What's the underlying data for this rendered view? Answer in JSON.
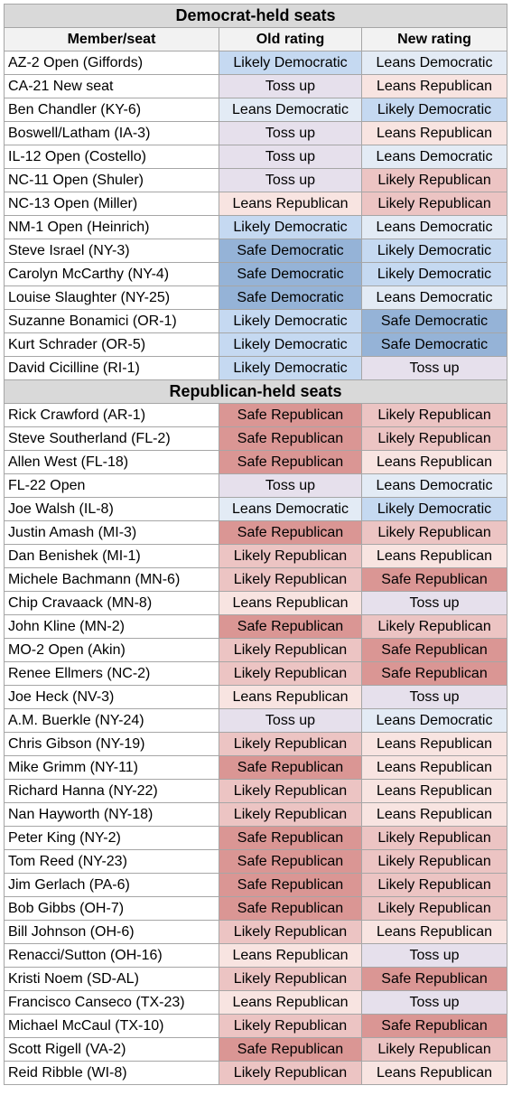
{
  "table": {
    "columns": [
      "Member/seat",
      "Old rating",
      "New rating"
    ],
    "rating_colors": {
      "Safe Democratic": "#95b3d7",
      "Likely Democratic": "#c5d9f1",
      "Leans Democratic": "#e3ebf5",
      "Toss up": "#e6e0ec",
      "Leans Republican": "#f8e4e1",
      "Likely Republican": "#ecc4c3",
      "Safe Republican": "#da9694"
    },
    "sections": [
      {
        "title": "Democrat-held seats",
        "rows": [
          [
            "AZ-2 Open (Giffords)",
            "Likely Democratic",
            "Leans Democratic"
          ],
          [
            "CA-21 New seat",
            "Toss up",
            "Leans Republican"
          ],
          [
            "Ben Chandler (KY-6)",
            "Leans Democratic",
            "Likely Democratic"
          ],
          [
            "Boswell/Latham (IA-3)",
            "Toss up",
            "Leans Republican"
          ],
          [
            "IL-12 Open (Costello)",
            "Toss up",
            "Leans Democratic"
          ],
          [
            "NC-11 Open (Shuler)",
            "Toss up",
            "Likely Republican"
          ],
          [
            "NC-13 Open (Miller)",
            "Leans Republican",
            "Likely Republican"
          ],
          [
            "NM-1 Open (Heinrich)",
            "Likely Democratic",
            "Leans Democratic"
          ],
          [
            "Steve Israel (NY-3)",
            "Safe Democratic",
            "Likely Democratic"
          ],
          [
            "Carolyn McCarthy (NY-4)",
            "Safe Democratic",
            "Likely Democratic"
          ],
          [
            "Louise Slaughter (NY-25)",
            "Safe Democratic",
            "Leans Democratic"
          ],
          [
            "Suzanne Bonamici (OR-1)",
            "Likely Democratic",
            "Safe Democratic"
          ],
          [
            "Kurt Schrader (OR-5)",
            "Likely Democratic",
            "Safe Democratic"
          ],
          [
            "David Cicilline (RI-1)",
            "Likely Democratic",
            "Toss up"
          ]
        ]
      },
      {
        "title": "Republican-held seats",
        "rows": [
          [
            "Rick Crawford (AR-1)",
            "Safe Republican",
            "Likely Republican"
          ],
          [
            "Steve Southerland (FL-2)",
            "Safe Republican",
            "Likely Republican"
          ],
          [
            "Allen West (FL-18)",
            "Safe Republican",
            "Leans Republican"
          ],
          [
            "FL-22 Open",
            "Toss up",
            "Leans Democratic"
          ],
          [
            "Joe Walsh (IL-8)",
            "Leans Democratic",
            "Likely Democratic"
          ],
          [
            "Justin Amash (MI-3)",
            "Safe Republican",
            "Likely Republican"
          ],
          [
            "Dan Benishek (MI-1)",
            "Likely Republican",
            "Leans Republican"
          ],
          [
            "Michele Bachmann (MN-6)",
            "Likely Republican",
            "Safe Republican"
          ],
          [
            "Chip Cravaack (MN-8)",
            "Leans Republican",
            "Toss up"
          ],
          [
            "John Kline (MN-2)",
            "Safe Republican",
            "Likely Republican"
          ],
          [
            "MO-2 Open (Akin)",
            "Likely Republican",
            "Safe Republican"
          ],
          [
            "Renee Ellmers (NC-2)",
            "Likely Republican",
            "Safe Republican"
          ],
          [
            "Joe Heck (NV-3)",
            "Leans Republican",
            "Toss up"
          ],
          [
            "A.M. Buerkle (NY-24)",
            "Toss up",
            "Leans Democratic"
          ],
          [
            "Chris Gibson (NY-19)",
            "Likely Republican",
            "Leans Republican"
          ],
          [
            "Mike Grimm (NY-11)",
            "Safe Republican",
            "Leans Republican"
          ],
          [
            "Richard Hanna (NY-22)",
            "Likely Republican",
            "Leans Republican"
          ],
          [
            "Nan Hayworth (NY-18)",
            "Likely Republican",
            "Leans Republican"
          ],
          [
            "Peter King (NY-2)",
            "Safe Republican",
            "Likely Republican"
          ],
          [
            "Tom Reed (NY-23)",
            "Safe Republican",
            "Likely Republican"
          ],
          [
            "Jim Gerlach (PA-6)",
            "Safe Republican",
            "Likely Republican"
          ],
          [
            "Bob Gibbs (OH-7)",
            "Safe Republican",
            "Likely Republican"
          ],
          [
            "Bill Johnson (OH-6)",
            "Likely Republican",
            "Leans Republican"
          ],
          [
            "Renacci/Sutton (OH-16)",
            "Leans Republican",
            "Toss up"
          ],
          [
            "Kristi Noem (SD-AL)",
            "Likely Republican",
            "Safe Republican"
          ],
          [
            "Francisco Canseco (TX-23)",
            "Leans Republican",
            "Toss up"
          ],
          [
            "Michael McCaul (TX-10)",
            "Likely Republican",
            "Safe Republican"
          ],
          [
            "Scott Rigell (VA-2)",
            "Safe Republican",
            "Likely Republican"
          ],
          [
            "Reid Ribble (WI-8)",
            "Likely Republican",
            "Leans Republican"
          ]
        ]
      }
    ]
  }
}
